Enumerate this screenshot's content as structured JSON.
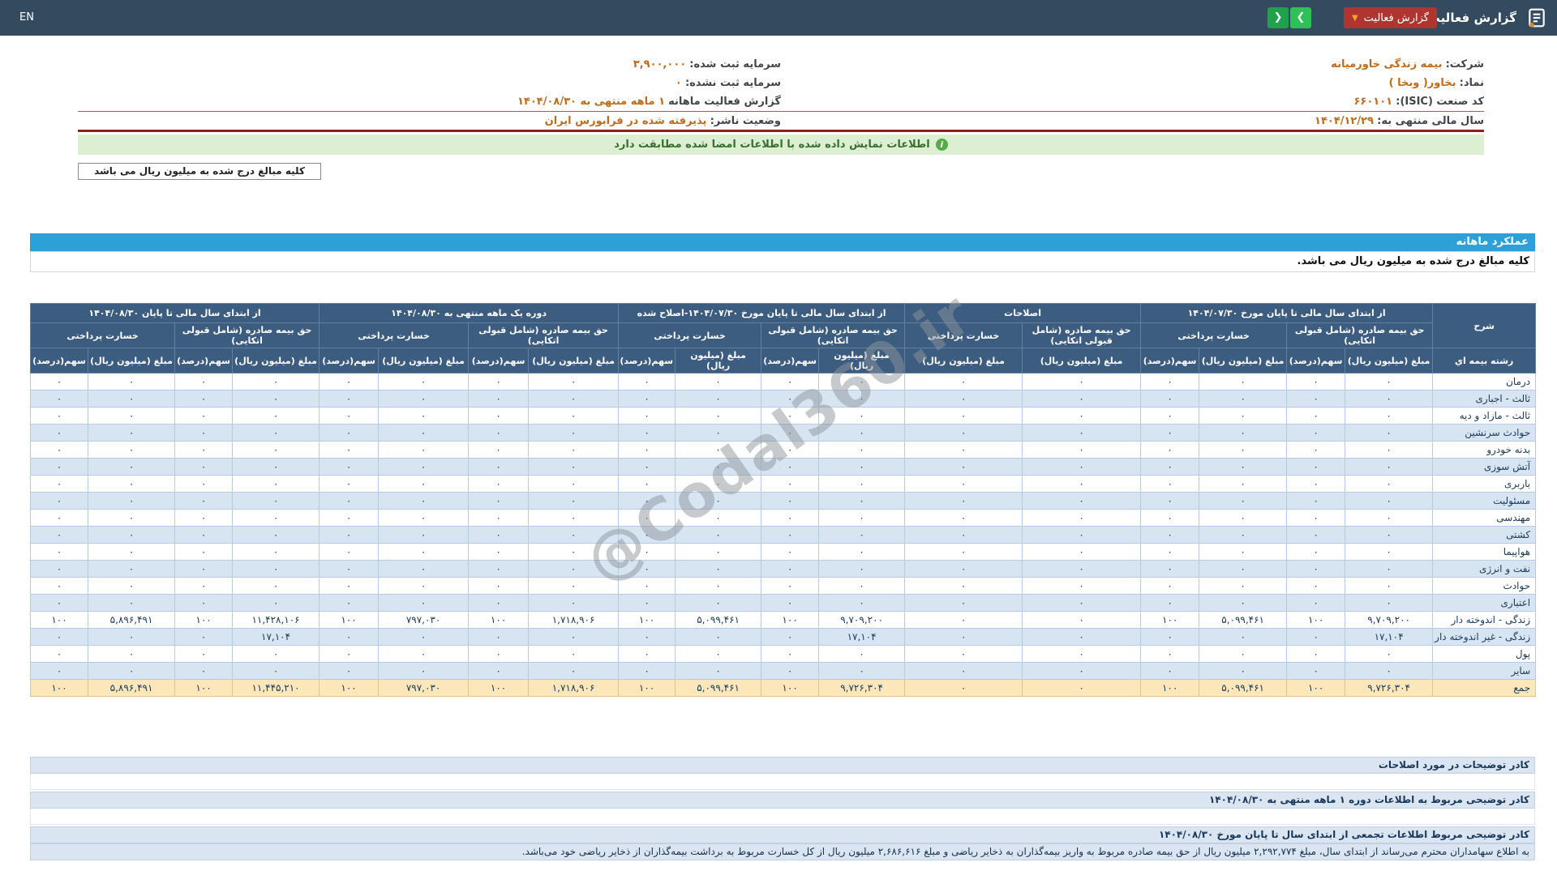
{
  "header": {
    "lang_toggle": "EN",
    "title": "گزارش فعالیت ماهانه",
    "report_select_label": "گزارش فعالیت",
    "nav_prev": "❮",
    "nav_next": "❯"
  },
  "company_info": {
    "right": [
      {
        "label": "شرکت:",
        "value": "بیمه زندگی خاورمیانه"
      },
      {
        "label": "نماد:",
        "value": "بخاور( وبخا )"
      },
      {
        "label": "کد صنعت (ISIC):",
        "value": "۶۶۰۱۰۱"
      },
      {
        "label": "سال مالی منتهی به:",
        "value": "۱۴۰۴/۱۲/۲۹"
      }
    ],
    "left": [
      {
        "label": "سرمایه ثبت شده:",
        "value": "۳,۹۰۰,۰۰۰"
      },
      {
        "label": "سرمایه ثبت نشده:",
        "value": "۰"
      },
      {
        "label": "گزارش فعالیت ماهانه",
        "value": "۱ ماهه منتهی به ۱۴۰۴/۰۸/۳۰"
      },
      {
        "label": "وضعیت ناشر:",
        "value": "پذیرفته شده در فرابورس ایران"
      }
    ]
  },
  "signed_banner": "اطلاعات نمایش داده شده با اطلاعات امضا شده مطابقت دارد",
  "unit_note_box": "کلیه مبالغ درج شده به میلیون ریال می باشد",
  "section": {
    "title": "عملکرد ماهانه",
    "unit_note": "کلیه مبالغ درج شده به میلیون ریال می باشد."
  },
  "table": {
    "corner_header": "شرح",
    "row_label_header": "رشته بیمه اي",
    "groups": [
      {
        "title": "از ابتدای سال مالی تا پایان مورخ ۱۴۰۴/۰۷/۳۰",
        "cols": 4
      },
      {
        "title": "اصلاحات",
        "cols": 2
      },
      {
        "title": "از ابتدای سال مالی تا پایان مورخ ۱۴۰۴/۰۷/۳۰-اصلاح شده",
        "cols": 4
      },
      {
        "title": "دوره یک ماهه منتهی به ۱۴۰۴/۰۸/۳۰",
        "cols": 4
      },
      {
        "title": "از ابتدای سال مالی تا پایان ۱۴۰۴/۰۸/۳۰",
        "cols": 4
      }
    ],
    "sub_headers": {
      "premium": "حق بیمه صادره (شامل قبولی اتکایی)",
      "claims": "خسارت پرداختی",
      "amount": "مبلغ (میلیون ریال)",
      "share": "سهم(درصد)"
    },
    "rows": [
      {
        "label": "درمان",
        "values": [
          "۰",
          "۰",
          "۰",
          "۰",
          "۰",
          "۰",
          "۰",
          "۰",
          "۰",
          "۰",
          "۰",
          "۰",
          "۰",
          "۰",
          "۰",
          "۰",
          "۰",
          "۰"
        ]
      },
      {
        "label": "ثالث - اجباری",
        "values": [
          "۰",
          "۰",
          "۰",
          "۰",
          "۰",
          "۰",
          "۰",
          "۰",
          "۰",
          "۰",
          "۰",
          "۰",
          "۰",
          "۰",
          "۰",
          "۰",
          "۰",
          "۰"
        ]
      },
      {
        "label": "ثالث - مازاد و دیه",
        "values": [
          "۰",
          "۰",
          "۰",
          "۰",
          "۰",
          "۰",
          "۰",
          "۰",
          "۰",
          "۰",
          "۰",
          "۰",
          "۰",
          "۰",
          "۰",
          "۰",
          "۰",
          "۰"
        ]
      },
      {
        "label": "حوادث سرنشین",
        "values": [
          "۰",
          "۰",
          "۰",
          "۰",
          "۰",
          "۰",
          "۰",
          "۰",
          "۰",
          "۰",
          "۰",
          "۰",
          "۰",
          "۰",
          "۰",
          "۰",
          "۰",
          "۰"
        ]
      },
      {
        "label": "بدنه خودرو",
        "values": [
          "۰",
          "۰",
          "۰",
          "۰",
          "۰",
          "۰",
          "۰",
          "۰",
          "۰",
          "۰",
          "۰",
          "۰",
          "۰",
          "۰",
          "۰",
          "۰",
          "۰",
          "۰"
        ]
      },
      {
        "label": "آتش سوزی",
        "values": [
          "۰",
          "۰",
          "۰",
          "۰",
          "۰",
          "۰",
          "۰",
          "۰",
          "۰",
          "۰",
          "۰",
          "۰",
          "۰",
          "۰",
          "۰",
          "۰",
          "۰",
          "۰"
        ]
      },
      {
        "label": "باربری",
        "values": [
          "۰",
          "۰",
          "۰",
          "۰",
          "۰",
          "۰",
          "۰",
          "۰",
          "۰",
          "۰",
          "۰",
          "۰",
          "۰",
          "۰",
          "۰",
          "۰",
          "۰",
          "۰"
        ]
      },
      {
        "label": "مسئولیت",
        "values": [
          "۰",
          "۰",
          "۰",
          "۰",
          "۰",
          "۰",
          "۰",
          "۰",
          "۰",
          "۰",
          "۰",
          "۰",
          "۰",
          "۰",
          "۰",
          "۰",
          "۰",
          "۰"
        ]
      },
      {
        "label": "مهندسی",
        "values": [
          "۰",
          "۰",
          "۰",
          "۰",
          "۰",
          "۰",
          "۰",
          "۰",
          "۰",
          "۰",
          "۰",
          "۰",
          "۰",
          "۰",
          "۰",
          "۰",
          "۰",
          "۰"
        ]
      },
      {
        "label": "کشتی",
        "values": [
          "۰",
          "۰",
          "۰",
          "۰",
          "۰",
          "۰",
          "۰",
          "۰",
          "۰",
          "۰",
          "۰",
          "۰",
          "۰",
          "۰",
          "۰",
          "۰",
          "۰",
          "۰"
        ]
      },
      {
        "label": "هواپیما",
        "values": [
          "۰",
          "۰",
          "۰",
          "۰",
          "۰",
          "۰",
          "۰",
          "۰",
          "۰",
          "۰",
          "۰",
          "۰",
          "۰",
          "۰",
          "۰",
          "۰",
          "۰",
          "۰"
        ]
      },
      {
        "label": "نفت و انرژی",
        "values": [
          "۰",
          "۰",
          "۰",
          "۰",
          "۰",
          "۰",
          "۰",
          "۰",
          "۰",
          "۰",
          "۰",
          "۰",
          "۰",
          "۰",
          "۰",
          "۰",
          "۰",
          "۰"
        ]
      },
      {
        "label": "حوادث",
        "values": [
          "۰",
          "۰",
          "۰",
          "۰",
          "۰",
          "۰",
          "۰",
          "۰",
          "۰",
          "۰",
          "۰",
          "۰",
          "۰",
          "۰",
          "۰",
          "۰",
          "۰",
          "۰"
        ]
      },
      {
        "label": "اعتباری",
        "values": [
          "۰",
          "۰",
          "۰",
          "۰",
          "۰",
          "۰",
          "۰",
          "۰",
          "۰",
          "۰",
          "۰",
          "۰",
          "۰",
          "۰",
          "۰",
          "۰",
          "۰",
          "۰"
        ]
      },
      {
        "label": "زندگی - اندوخته دار",
        "values": [
          "۹,۷۰۹,۲۰۰",
          "۱۰۰",
          "۵,۰۹۹,۴۶۱",
          "۱۰۰",
          "۰",
          "۰",
          "۹,۷۰۹,۲۰۰",
          "۱۰۰",
          "۵,۰۹۹,۴۶۱",
          "۱۰۰",
          "۱,۷۱۸,۹۰۶",
          "۱۰۰",
          "۷۹۷,۰۳۰",
          "۱۰۰",
          "۱۱,۴۲۸,۱۰۶",
          "۱۰۰",
          "۵,۸۹۶,۴۹۱",
          "۱۰۰"
        ]
      },
      {
        "label": "زندگی - غیر اندوخته دار",
        "values": [
          "۱۷,۱۰۴",
          "۰",
          "۰",
          "۰",
          "۰",
          "۰",
          "۱۷,۱۰۴",
          "۰",
          "۰",
          "۰",
          "۰",
          "۰",
          "۰",
          "۰",
          "۱۷,۱۰۴",
          "۰",
          "۰",
          "۰"
        ]
      },
      {
        "label": "پول",
        "values": [
          "۰",
          "۰",
          "۰",
          "۰",
          "۰",
          "۰",
          "۰",
          "۰",
          "۰",
          "۰",
          "۰",
          "۰",
          "۰",
          "۰",
          "۰",
          "۰",
          "۰",
          "۰"
        ]
      },
      {
        "label": "سایر",
        "values": [
          "۰",
          "۰",
          "۰",
          "۰",
          "۰",
          "۰",
          "۰",
          "۰",
          "۰",
          "۰",
          "۰",
          "۰",
          "۰",
          "۰",
          "۰",
          "۰",
          "۰",
          "۰"
        ]
      },
      {
        "label": "جمع",
        "total": true,
        "values": [
          "۹,۷۲۶,۳۰۴",
          "۱۰۰",
          "۵,۰۹۹,۴۶۱",
          "۱۰۰",
          "۰",
          "۰",
          "۹,۷۲۶,۳۰۴",
          "۱۰۰",
          "۵,۰۹۹,۴۶۱",
          "۱۰۰",
          "۱,۷۱۸,۹۰۶",
          "۱۰۰",
          "۷۹۷,۰۳۰",
          "۱۰۰",
          "۱۱,۴۴۵,۲۱۰",
          "۱۰۰",
          "۵,۸۹۶,۴۹۱",
          "۱۰۰"
        ]
      }
    ]
  },
  "footnotes": {
    "corrections_header": "کادر توضیحات در مورد اصلاحات",
    "period_header": "کادر توضیحی مربوط به اطلاعات دوره ۱ ماهه منتهی به ۱۴۰۴/۰۸/۳۰",
    "cumulative_header": "کادر توضیحی مربوط اطلاعات تجمعی از ابتدای سال تا پایان مورخ ۱۴۰۴/۰۸/۳۰",
    "cumulative_text": "به اطلاع سهامداران محترم می‌رساند از ابتدای سال، مبلغ ۲,۲۹۲,۷۷۴ میلیون ریال از حق بیمه صادره مربوط به واریز بیمه‌گذاران به ذخایر ریاضی و مبلغ ۲,۶۸۶,۶۱۶ میلیون ریال از کل خسارت مربوط به برداشت بیمه‌گذاران از ذخایر ریاضی خود می‌باشد."
  },
  "watermark": "@Codal360.ir",
  "colors": {
    "topbar_bg": "#344a5f",
    "report_button_bg": "#b03530",
    "nav_button_green": "#2ec158",
    "section_header_bg": "#2da0d8",
    "table_header_bg": "#3c5c80",
    "row_alt_bg": "#d7e5f3",
    "total_row_bg": "#fbe7ba",
    "banner_bg": "#dcefd2",
    "banner_text": "#35702c",
    "info_value_text": "#bf6c1a",
    "red_divider": "#8e1f1b"
  }
}
